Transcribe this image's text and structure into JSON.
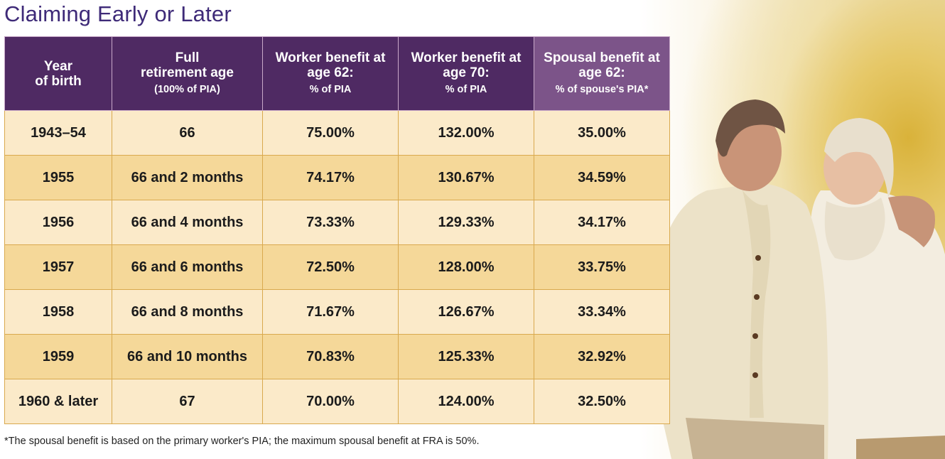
{
  "title": "Claiming Early or Later",
  "headers": [
    {
      "main_lines": [
        "Year",
        "of birth"
      ],
      "sub": ""
    },
    {
      "main_lines": [
        "Full",
        "retirement age"
      ],
      "sub": "(100% of PIA)"
    },
    {
      "main_lines": [
        "Worker benefit at",
        "age 62:"
      ],
      "sub": "% of PIA"
    },
    {
      "main_lines": [
        "Worker benefit at",
        "age 70:"
      ],
      "sub": "% of PIA"
    },
    {
      "main_lines": [
        "Spousal benefit at",
        "age 62:"
      ],
      "sub": "% of spouse's PIA*"
    }
  ],
  "rows": [
    [
      "1943–54",
      "66",
      "75.00%",
      "132.00%",
      "35.00%"
    ],
    [
      "1955",
      "66 and 2 months",
      "74.17%",
      "130.67%",
      "34.59%"
    ],
    [
      "1956",
      "66 and 4 months",
      "73.33%",
      "129.33%",
      "34.17%"
    ],
    [
      "1957",
      "66 and 6 months",
      "72.50%",
      "128.00%",
      "33.75%"
    ],
    [
      "1958",
      "66 and 8 months",
      "71.67%",
      "126.67%",
      "33.34%"
    ],
    [
      "1959",
      "66 and 10 months",
      "70.83%",
      "125.33%",
      "32.92%"
    ],
    [
      "1960 & later",
      "67",
      "70.00%",
      "124.00%",
      "32.50%"
    ]
  ],
  "footnote": "*The spousal benefit is based on the primary worker's PIA; the maximum spousal benefit at FRA is 50%.",
  "colors": {
    "title": "#3e2a78",
    "header_bg": "#4f2a63",
    "header_last_bg": "#7c5489",
    "row_light": "#fbeac9",
    "row_dark": "#f5d899",
    "grid_line": "#d9a94e"
  },
  "chart_data": {
    "type": "table",
    "title": "Claiming Early or Later",
    "columns": [
      "Year of birth",
      "Full retirement age (100% of PIA)",
      "Worker benefit at age 62: % of PIA",
      "Worker benefit at age 70: % of PIA",
      "Spousal benefit at age 62: % of spouse's PIA*"
    ],
    "rows": [
      [
        "1943–54",
        "66",
        75.0,
        132.0,
        35.0
      ],
      [
        "1955",
        "66 and 2 months",
        74.17,
        130.67,
        34.59
      ],
      [
        "1956",
        "66 and 4 months",
        73.33,
        129.33,
        34.17
      ],
      [
        "1957",
        "66 and 6 months",
        72.5,
        128.0,
        33.75
      ],
      [
        "1958",
        "66 and 8 months",
        71.67,
        126.67,
        33.34
      ],
      [
        "1959",
        "66 and 10 months",
        70.83,
        125.33,
        32.92
      ],
      [
        "1960 & later",
        "67",
        70.0,
        124.0,
        32.5
      ]
    ]
  }
}
